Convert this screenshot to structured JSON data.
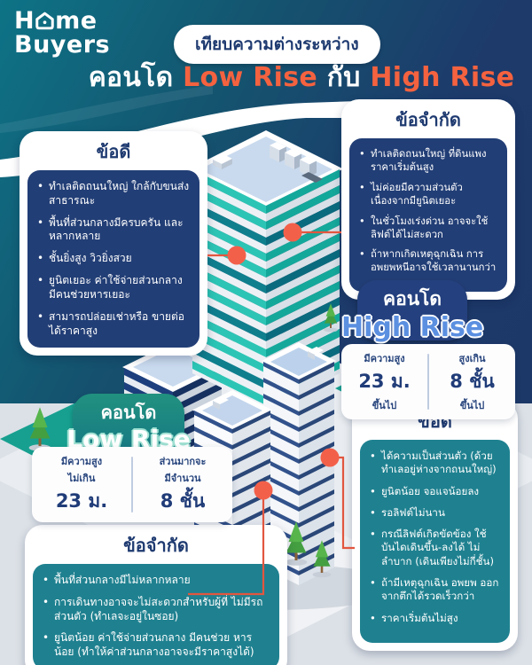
{
  "brand": {
    "line1_pre": "H",
    "line1_post": "me",
    "line2": "Buyers",
    "house_icon": "house-icon"
  },
  "header": {
    "pill": "เทียบความต่างระหว่าง",
    "title_condo": "คอนโด",
    "title_low": "Low Rise",
    "title_vs": "กับ",
    "title_high": "High Rise"
  },
  "high_rise": {
    "pros": {
      "title": "ข้อดี",
      "items": [
        "ทำเลติดถนนใหญ่ ใกล้กับขนส่งสาธารณะ",
        "พื้นที่ส่วนกลางมีครบครัน และหลากหลาย",
        "ชั้นยิ่งสูง วิวยิ่งสวย",
        "ยูนิตเยอะ ค่าใช้จ่ายส่วนกลาง มีคนช่วยหารเยอะ",
        "สามารถปล่อยเช่าหรือ ขายต่อได้ราคาสูง"
      ]
    },
    "cons": {
      "title": "ข้อจำกัด",
      "items": [
        "ทำเลติดถนนใหญ่ ที่ดินแพง ราคาเริ่มต้นสูง",
        "ไม่ค่อยมีความส่วนตัว เนื่องจากมียูนิตเยอะ",
        "ในชั่วโมงเร่งด่วน อาจจะใช้ลิฟต์ได้ไม่สะดวก",
        "ถ้าหากเกิดเหตุฉุกเฉิน การอพยพหนีอาจใช้เวลานานกว่า"
      ]
    },
    "badge": {
      "condo": "คอนโด",
      "name": "High Rise"
    },
    "specs": [
      {
        "label": "มีความสูง",
        "value": "23 ม.",
        "suffix": "ขึ้นไป"
      },
      {
        "label": "สูงเกิน",
        "value": "8 ชั้น",
        "suffix": "ขึ้นไป"
      }
    ]
  },
  "low_rise": {
    "badge": {
      "condo": "คอนโด",
      "name": "Low Rise"
    },
    "specs": [
      {
        "label": "มีความสูง",
        "label2": "ไม่เกิน",
        "value": "23 ม."
      },
      {
        "label": "ส่วนมากจะ",
        "label2": "มีจำนวน",
        "value": "8 ชั้น"
      }
    ],
    "cons": {
      "title": "ข้อจำกัด",
      "items": [
        "พื้นที่ส่วนกลางมีไม่หลากหลาย",
        "การเดินทางอาจจะไม่สะดวกสำหรับผู้ที่ ไม่มีรถส่วนตัว (ทำเลจะอยู่ในซอย)",
        "ยูนิตน้อย ค่าใช้จ่ายส่วนกลาง มีคนช่วย หารน้อย (ทำให้ค่าส่วนกลางอาจจะมีราคาสูงได้)"
      ]
    },
    "pros": {
      "title": "ข้อดี",
      "items": [
        "ได้ความเป็นส่วนตัว (ด้วยทำเลอยู่ห่างจากถนนใหญ่)",
        "ยูนิตน้อย จอแจน้อยลง",
        "รอลิฟต์ไม่นาน",
        "กรณีลิฟต์เกิดขัดข้อง ใช้บันไดเดินขึ้น-ลงได้ ไม่ลำบาก (เดินเพียงไม่กี่ชั้น)",
        "ถ้ามีเหตุฉุกเฉิน อพยพ ออกจากตึกได้รวดเร็วกว่า",
        "ราคาเริ่มต้นไม่สูง"
      ]
    }
  },
  "colors": {
    "accent_orange": "#F4623F",
    "connector_red": "#E2563F",
    "navy_panel": "#223E76",
    "teal_panel": "#1F8190",
    "navy_text": "#1E3A70",
    "bg_teal": "#0E7386",
    "bg_navy": "#1D3A6B",
    "highrise_stripe": "#2CC5B5"
  }
}
